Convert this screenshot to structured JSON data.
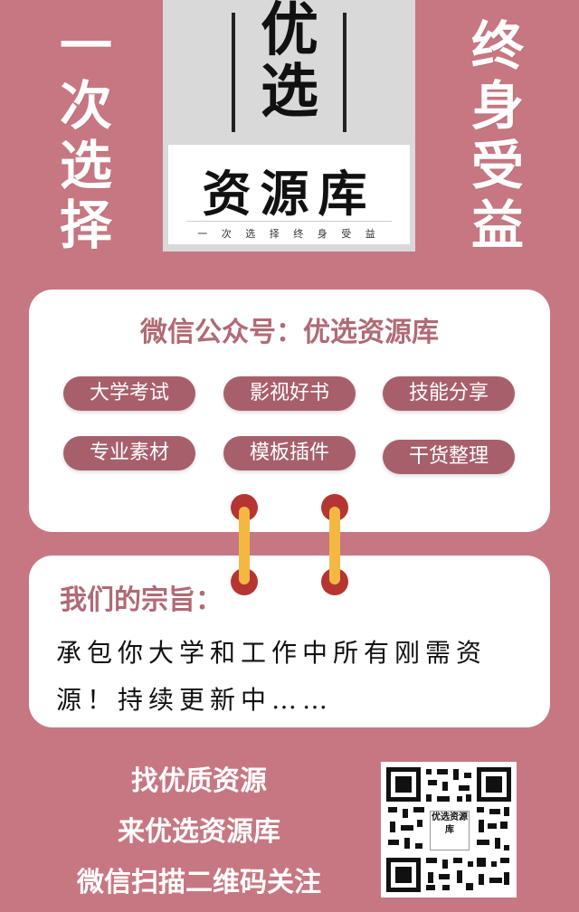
{
  "side_left": [
    "一",
    "次",
    "选",
    "择"
  ],
  "side_right": [
    "终",
    "身",
    "受",
    "益"
  ],
  "logo": {
    "big": "优选",
    "sub": "资源库",
    "tagline": "一 次 选 择    终 身 受 益"
  },
  "card1": {
    "title": "微信公众号：优选资源库",
    "tags": [
      "大学考试",
      "影视好书",
      "技能分享",
      "专业素材",
      "模板插件",
      "干货整理"
    ]
  },
  "card2": {
    "title": "我们的宗旨：",
    "text": "承包你大学和工作中所有刚需资源！持续更新中……"
  },
  "bottom": {
    "line1": "找优质资源",
    "line2": "来优选资源库",
    "line3": "微信扫描二维码关注"
  },
  "qr_logo": "优选资源库",
  "colors": {
    "background": "#c77782",
    "pill": "#a85f6c",
    "title": "#b06a74",
    "ring": "#b53532",
    "binder": "#f4b842"
  }
}
